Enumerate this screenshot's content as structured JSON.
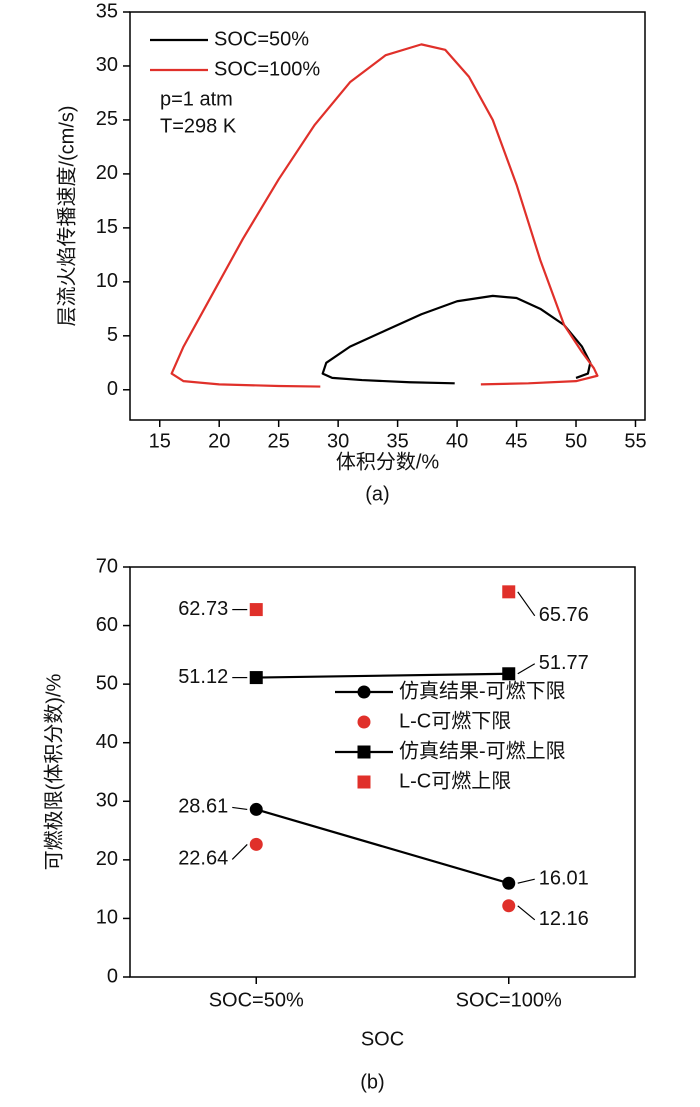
{
  "chart_data": [
    {
      "type": "line",
      "caption": "(a)",
      "x_label": "体积分数/%",
      "y_label": "层流火焰传播速度/(cm/s)",
      "xlim": [
        12.5,
        55.8
      ],
      "ylim": [
        -2.8,
        35
      ],
      "xticks": [
        15,
        20,
        25,
        30,
        35,
        40,
        45,
        50,
        55
      ],
      "yticks": [
        0,
        5,
        10,
        15,
        20,
        25,
        30,
        35
      ],
      "grid": false,
      "legend": "top-left",
      "annotations": [
        "p=1 atm",
        "T=298 K"
      ],
      "series": [
        {
          "name": "SOC=50%",
          "color": "#000000",
          "x": [
            39.8,
            36,
            32,
            29.5,
            28.7,
            29,
            31,
            34,
            37,
            40,
            43,
            45,
            47,
            49,
            50.5,
            51.2,
            51,
            50
          ],
          "values": [
            0.6,
            0.7,
            0.9,
            1.1,
            1.5,
            2.5,
            4,
            5.5,
            7,
            8.2,
            8.7,
            8.5,
            7.5,
            6,
            4,
            2.5,
            1.5,
            1.1
          ]
        },
        {
          "name": "SOC=100%",
          "color": "#e0302a",
          "x": [
            28.5,
            25,
            20,
            17,
            16,
            17,
            19,
            22,
            25,
            28,
            31,
            34,
            37,
            39,
            41,
            43,
            45,
            47,
            49,
            50.5,
            51.5,
            51.8,
            50,
            46,
            42
          ],
          "values": [
            0.3,
            0.35,
            0.5,
            0.8,
            1.5,
            4,
            8,
            14,
            19.5,
            24.5,
            28.5,
            31,
            32,
            31.5,
            29,
            25,
            19,
            12,
            6,
            3.5,
            2,
            1.3,
            0.8,
            0.6,
            0.5
          ]
        }
      ]
    },
    {
      "type": "line",
      "caption": "(b)",
      "x_label": "SOC",
      "y_label": "可燃极限(体积分数)/%",
      "categories": [
        "SOC=50%",
        "SOC=100%"
      ],
      "ylim": [
        0,
        70
      ],
      "yticks": [
        0,
        10,
        20,
        30,
        40,
        50,
        60,
        70
      ],
      "grid": false,
      "legend": "center-right",
      "show_values": true,
      "series": [
        {
          "name": "仿真结果-可燃下限",
          "color": "#000000",
          "marker": "circle",
          "line": true,
          "values": [
            28.61,
            16.01
          ]
        },
        {
          "name": "L-C可燃下限",
          "color": "#e0302a",
          "marker": "circle",
          "line": false,
          "values": [
            22.64,
            12.16
          ]
        },
        {
          "name": "仿真结果-可燃上限",
          "color": "#000000",
          "marker": "square",
          "line": true,
          "values": [
            51.12,
            51.77
          ]
        },
        {
          "name": "L-C可燃上限",
          "color": "#e0302a",
          "marker": "square",
          "line": false,
          "values": [
            62.73,
            65.76
          ]
        }
      ]
    }
  ]
}
